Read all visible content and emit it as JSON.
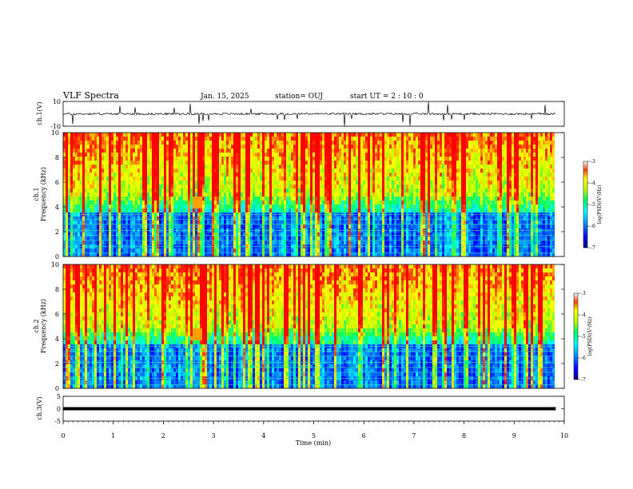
{
  "header": {
    "title": "VLF Spectra",
    "date": "Jan. 15, 2025",
    "station": "station= OUJ",
    "start": "start  UT =  2 : 10 : 0"
  },
  "chart_data": [
    {
      "type": "line",
      "panel": "ch1-waveform",
      "ylabel": "ch.1(V)",
      "ylim": [
        -10,
        10
      ],
      "yticks": [
        "10",
        "-10"
      ],
      "xlim": [
        0,
        10
      ],
      "baseline_v": 0,
      "color": "#000000"
    },
    {
      "type": "heatmap",
      "panel": "ch1-spectrogram",
      "ylabel": "ch.1\nFrequency (kHz)",
      "ylabel_line1": "ch.1",
      "ylabel_line2": "Frequency (kHz)",
      "ylim": [
        0,
        10
      ],
      "yticks": [
        "0",
        "2",
        "4",
        "6",
        "8",
        "10"
      ],
      "xlim": [
        0,
        10
      ],
      "data_end_min": 9.83,
      "colorbar": {
        "label": "log(PSD)(V²/Hz)",
        "range": [
          -7,
          -3
        ],
        "ticks": [
          "-3",
          "-4",
          "-5",
          "-6",
          "-7"
        ]
      },
      "features": {
        "tone_lines_khz": [
          0.3,
          0.8,
          1.3,
          1.7,
          2.1,
          2.6,
          3.0,
          3.4
        ],
        "blob_time_min": 2.65,
        "blob_khz": 4.3
      }
    },
    {
      "type": "heatmap",
      "panel": "ch2-spectrogram",
      "ylabel": "ch.2\nFrequency (kHz)",
      "ylabel_line1": "ch.2",
      "ylabel_line2": "Frequency (kHz)",
      "ylim": [
        0,
        10
      ],
      "yticks": [
        "0",
        "2",
        "4",
        "6",
        "8",
        "10"
      ],
      "xlim": [
        0,
        10
      ],
      "data_end_min": 9.83,
      "colorbar": {
        "label": "log(PSD)(V²/Hz)",
        "range": [
          -7,
          -3
        ],
        "ticks": [
          "-3",
          "-4",
          "-5",
          "-6",
          "-7"
        ]
      },
      "features": {
        "tone_lines_khz": [
          0.3,
          0.8,
          1.3,
          1.7,
          2.1,
          2.6,
          3.0,
          3.4
        ],
        "blob_time_min": 2.65,
        "blob_khz": 4.3
      }
    },
    {
      "type": "line",
      "panel": "ch3-waveform",
      "ylabel": "ch.3(V)",
      "ylim": [
        -5,
        5
      ],
      "yticks": [
        "5",
        "0",
        "-5"
      ],
      "xlim": [
        0,
        10
      ],
      "xlabel": "Time (min)",
      "xticks": [
        "0",
        "1",
        "2",
        "3",
        "4",
        "5",
        "6",
        "7",
        "8",
        "9",
        "10"
      ],
      "constant_v": 0,
      "color": "#000000"
    }
  ]
}
